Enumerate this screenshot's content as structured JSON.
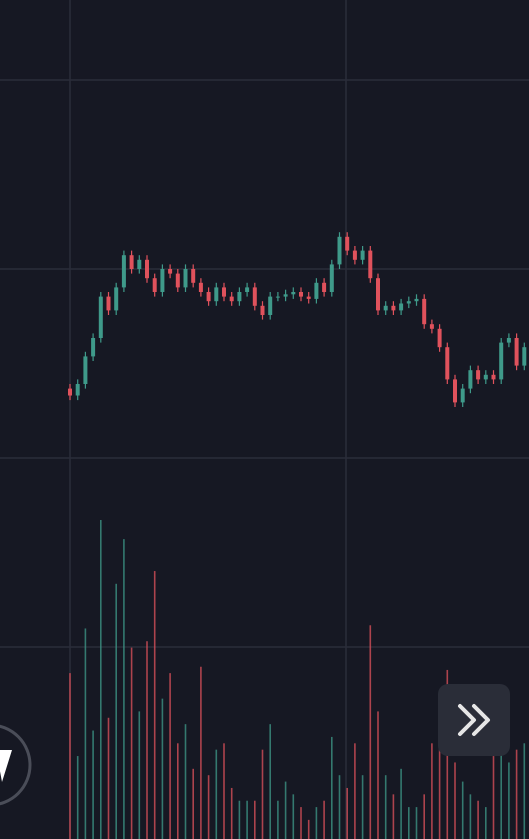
{
  "chart_data": {
    "type": "candlestick",
    "up_color": "#3f9a8a",
    "down_color": "#e0525c",
    "ylim": [
      0,
      100
    ],
    "volume_ylim": [
      0,
      100
    ],
    "open": [
      18,
      15,
      20,
      32,
      40,
      58,
      52,
      62,
      76,
      70,
      74,
      66,
      60,
      70,
      68,
      62,
      70,
      64,
      60,
      56,
      62,
      58,
      56,
      60,
      62,
      54,
      50,
      58,
      58,
      59,
      60,
      58,
      57,
      64,
      60,
      72,
      84,
      78,
      74,
      78,
      66,
      52,
      54,
      52,
      55,
      56,
      57,
      46,
      44,
      36,
      22,
      12,
      18,
      26,
      22,
      24,
      22,
      38,
      40,
      28
    ],
    "high": [
      20,
      22,
      34,
      42,
      60,
      60,
      64,
      78,
      78,
      76,
      76,
      68,
      72,
      72,
      70,
      72,
      72,
      66,
      62,
      64,
      64,
      60,
      62,
      64,
      64,
      56,
      60,
      60,
      61,
      62,
      62,
      60,
      66,
      66,
      74,
      86,
      86,
      80,
      80,
      80,
      68,
      56,
      56,
      57,
      58,
      59,
      59,
      48,
      46,
      38,
      24,
      20,
      28,
      28,
      26,
      26,
      40,
      42,
      42,
      38
    ],
    "low": [
      13,
      13,
      18,
      30,
      38,
      50,
      50,
      60,
      68,
      68,
      64,
      58,
      58,
      66,
      60,
      60,
      62,
      58,
      54,
      54,
      56,
      54,
      54,
      58,
      52,
      48,
      48,
      56,
      56,
      57,
      56,
      55,
      55,
      58,
      58,
      70,
      76,
      72,
      72,
      64,
      50,
      50,
      50,
      50,
      53,
      54,
      44,
      42,
      34,
      20,
      10,
      10,
      16,
      20,
      20,
      20,
      20,
      36,
      26,
      26
    ],
    "close": [
      15,
      20,
      32,
      40,
      58,
      52,
      62,
      76,
      70,
      74,
      66,
      60,
      70,
      68,
      62,
      70,
      64,
      60,
      56,
      62,
      58,
      56,
      60,
      62,
      54,
      50,
      58,
      58,
      59,
      60,
      58,
      57,
      64,
      60,
      72,
      84,
      78,
      74,
      78,
      66,
      52,
      54,
      52,
      55,
      56,
      57,
      46,
      44,
      36,
      22,
      12,
      18,
      26,
      22,
      24,
      22,
      38,
      40,
      28,
      36
    ],
    "volume": [
      52,
      26,
      66,
      34,
      100,
      38,
      80,
      94,
      60,
      40,
      62,
      84,
      44,
      52,
      30,
      36,
      22,
      54,
      20,
      28,
      30,
      16,
      12,
      12,
      12,
      28,
      36,
      12,
      18,
      14,
      10,
      6,
      10,
      12,
      32,
      20,
      16,
      30,
      20,
      67,
      40,
      20,
      14,
      22,
      10,
      10,
      14,
      30,
      36,
      53,
      24,
      18,
      14,
      12,
      10,
      26,
      30,
      24,
      28,
      30
    ]
  }
}
